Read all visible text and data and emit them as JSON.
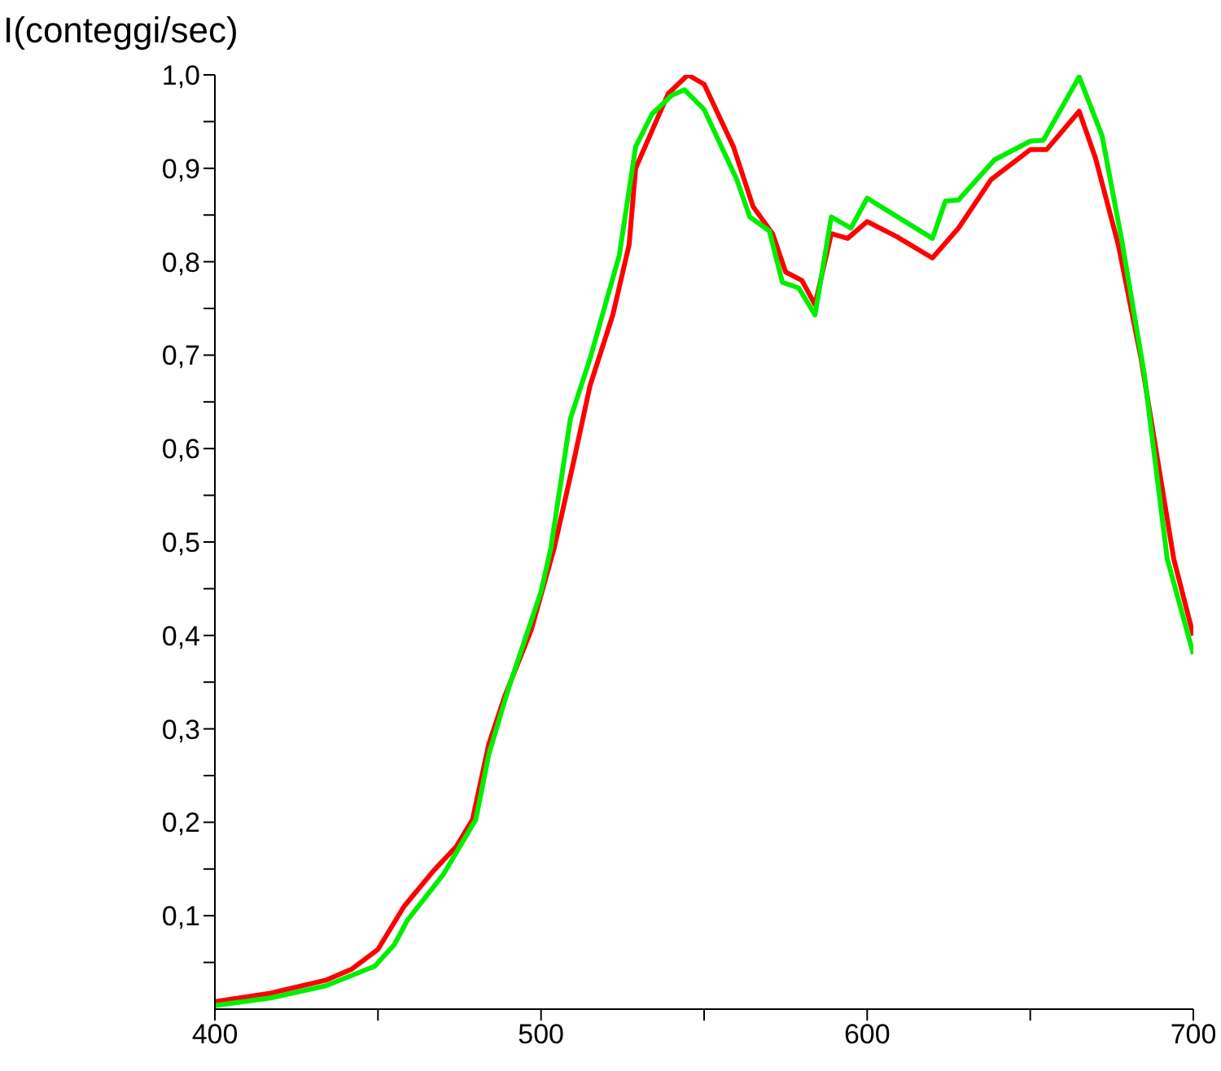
{
  "chart_data": {
    "type": "line",
    "ylabel": "I(conteggi/sec)",
    "xlim": [
      400,
      700
    ],
    "ylim": [
      0,
      1.0
    ],
    "xticks": [
      400,
      {
        "value": 450,
        "label": null
      },
      500,
      {
        "value": 550,
        "label": null
      },
      600,
      {
        "value": 650,
        "label": null
      },
      700
    ],
    "yticks": [
      {
        "value": 0.05,
        "label": null
      },
      {
        "value": 0.1,
        "label": "0,1"
      },
      {
        "value": 0.15,
        "label": null
      },
      {
        "value": 0.2,
        "label": "0,2"
      },
      {
        "value": 0.25,
        "label": null
      },
      {
        "value": 0.3,
        "label": "0,3"
      },
      {
        "value": 0.35,
        "label": null
      },
      {
        "value": 0.4,
        "label": "0,4"
      },
      {
        "value": 0.45,
        "label": null
      },
      {
        "value": 0.5,
        "label": "0,5"
      },
      {
        "value": 0.55,
        "label": null
      },
      {
        "value": 0.6,
        "label": "0,6"
      },
      {
        "value": 0.65,
        "label": null
      },
      {
        "value": 0.7,
        "label": "0,7"
      },
      {
        "value": 0.75,
        "label": null
      },
      {
        "value": 0.8,
        "label": "0,8"
      },
      {
        "value": 0.85,
        "label": null
      },
      {
        "value": 0.9,
        "label": "0,9"
      },
      {
        "value": 0.95,
        "label": null
      },
      {
        "value": 1.0,
        "label": "1,0"
      }
    ],
    "marker": "none",
    "line_style": "solid",
    "series": [
      {
        "color": "#ff0000",
        "x": [
          400,
          417,
          434,
          442,
          450,
          458,
          467,
          474,
          479,
          484,
          489,
          497,
          504,
          510,
          515,
          522,
          527,
          529,
          534,
          539,
          545,
          550,
          559,
          565,
          571,
          575,
          580,
          584,
          589,
          594,
          600,
          609,
          620,
          628,
          638,
          650,
          655,
          665,
          670,
          677,
          684,
          694,
          700
        ],
        "values": [
          0.008,
          0.017,
          0.031,
          0.043,
          0.064,
          0.11,
          0.148,
          0.174,
          0.203,
          0.284,
          0.336,
          0.406,
          0.493,
          0.586,
          0.667,
          0.743,
          0.818,
          0.9,
          0.94,
          0.98,
          1.0,
          0.99,
          0.923,
          0.859,
          0.83,
          0.789,
          0.78,
          0.754,
          0.83,
          0.825,
          0.843,
          0.827,
          0.804,
          0.836,
          0.888,
          0.92,
          0.92,
          0.961,
          0.911,
          0.818,
          0.696,
          0.482,
          0.4
        ]
      },
      {
        "color": "#00ee00",
        "x": [
          400,
          417,
          434,
          449,
          455,
          459,
          470,
          480,
          484,
          490,
          500,
          503,
          509,
          515,
          524,
          529,
          534,
          540,
          544,
          550,
          560,
          564,
          570,
          574,
          579,
          584,
          589,
          595,
          600,
          620,
          624,
          628,
          639,
          650,
          654,
          665,
          672,
          678,
          685,
          692,
          700
        ],
        "values": [
          0.004,
          0.012,
          0.025,
          0.046,
          0.069,
          0.095,
          0.144,
          0.203,
          0.273,
          0.343,
          0.447,
          0.493,
          0.632,
          0.696,
          0.807,
          0.923,
          0.958,
          0.978,
          0.984,
          0.963,
          0.888,
          0.848,
          0.833,
          0.778,
          0.772,
          0.743,
          0.848,
          0.836,
          0.868,
          0.825,
          0.865,
          0.866,
          0.909,
          0.929,
          0.93,
          0.998,
          0.935,
          0.824,
          0.679,
          0.482,
          0.38
        ]
      }
    ]
  }
}
